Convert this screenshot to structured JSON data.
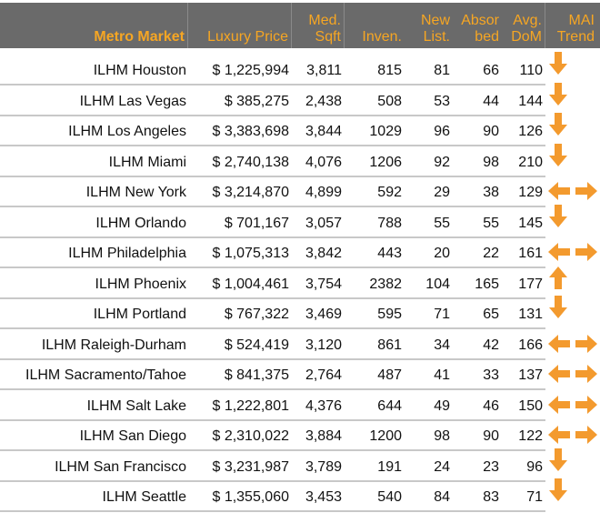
{
  "headers": {
    "market": "Metro Market",
    "price": "Luxury Price",
    "sqft": "Med.\nSqft",
    "inven": "Inven.",
    "newlist": "New\nList.",
    "absorbed": "Absor\nbed",
    "dom": "Avg.\nDoM",
    "trend": "MAI\nTrend"
  },
  "colors": {
    "header_bg": "#6a6a6a",
    "header_text": "#f6a623",
    "arrow": "#f39a2e"
  },
  "rows": [
    {
      "market": "ILHM Houston",
      "price": "$ 1,225,994",
      "sqft": "3,811",
      "inven": "815",
      "newlist": "81",
      "absorbed": "66",
      "dom": "110",
      "trend": "down-arrow"
    },
    {
      "market": "ILHM Las Vegas",
      "price": "$ 385,275",
      "sqft": "2,438",
      "inven": "508",
      "newlist": "53",
      "absorbed": "44",
      "dom": "144",
      "trend": "down-arrow"
    },
    {
      "market": "ILHM Los Angeles",
      "price": "$ 3,383,698",
      "sqft": "3,844",
      "inven": "1029",
      "newlist": "96",
      "absorbed": "90",
      "dom": "126",
      "trend": "down-arrow"
    },
    {
      "market": "ILHM Miami",
      "price": "$ 2,740,138",
      "sqft": "4,076",
      "inven": "1206",
      "newlist": "92",
      "absorbed": "98",
      "dom": "210",
      "trend": "down-arrow"
    },
    {
      "market": "ILHM New York",
      "price": "$ 3,214,870",
      "sqft": "4,899",
      "inven": "592",
      "newlist": "29",
      "absorbed": "38",
      "dom": "129",
      "trend": "left-right-arrows"
    },
    {
      "market": "ILHM Orlando",
      "price": "$ 701,167",
      "sqft": "3,057",
      "inven": "788",
      "newlist": "55",
      "absorbed": "55",
      "dom": "145",
      "trend": "down-arrow"
    },
    {
      "market": "ILHM Philadelphia",
      "price": "$ 1,075,313",
      "sqft": "3,842",
      "inven": "443",
      "newlist": "20",
      "absorbed": "22",
      "dom": "161",
      "trend": "left-right-arrows"
    },
    {
      "market": "ILHM Phoenix",
      "price": "$ 1,004,461",
      "sqft": "3,754",
      "inven": "2382",
      "newlist": "104",
      "absorbed": "165",
      "dom": "177",
      "trend": "up-arrow"
    },
    {
      "market": "ILHM Portland",
      "price": "$ 767,322",
      "sqft": "3,469",
      "inven": "595",
      "newlist": "71",
      "absorbed": "65",
      "dom": "131",
      "trend": "down-arrow"
    },
    {
      "market": "ILHM Raleigh-Durham",
      "price": "$ 524,419",
      "sqft": "3,120",
      "inven": "861",
      "newlist": "34",
      "absorbed": "42",
      "dom": "166",
      "trend": "left-right-arrows"
    },
    {
      "market": "ILHM Sacramento/Tahoe",
      "price": "$ 841,375",
      "sqft": "2,764",
      "inven": "487",
      "newlist": "41",
      "absorbed": "33",
      "dom": "137",
      "trend": "left-right-arrows"
    },
    {
      "market": "ILHM Salt Lake",
      "price": "$ 1,222,801",
      "sqft": "4,376",
      "inven": "644",
      "newlist": "49",
      "absorbed": "46",
      "dom": "150",
      "trend": "left-right-arrows"
    },
    {
      "market": "ILHM San Diego",
      "price": "$ 2,310,022",
      "sqft": "3,884",
      "inven": "1200",
      "newlist": "98",
      "absorbed": "90",
      "dom": "122",
      "trend": "left-right-arrows"
    },
    {
      "market": "ILHM San Francisco",
      "price": "$ 3,231,987",
      "sqft": "3,789",
      "inven": "191",
      "newlist": "24",
      "absorbed": "23",
      "dom": "96",
      "trend": "down-arrow"
    },
    {
      "market": "ILHM Seattle",
      "price": "$ 1,355,060",
      "sqft": "3,453",
      "inven": "540",
      "newlist": "84",
      "absorbed": "83",
      "dom": "71",
      "trend": "down-arrow"
    }
  ]
}
